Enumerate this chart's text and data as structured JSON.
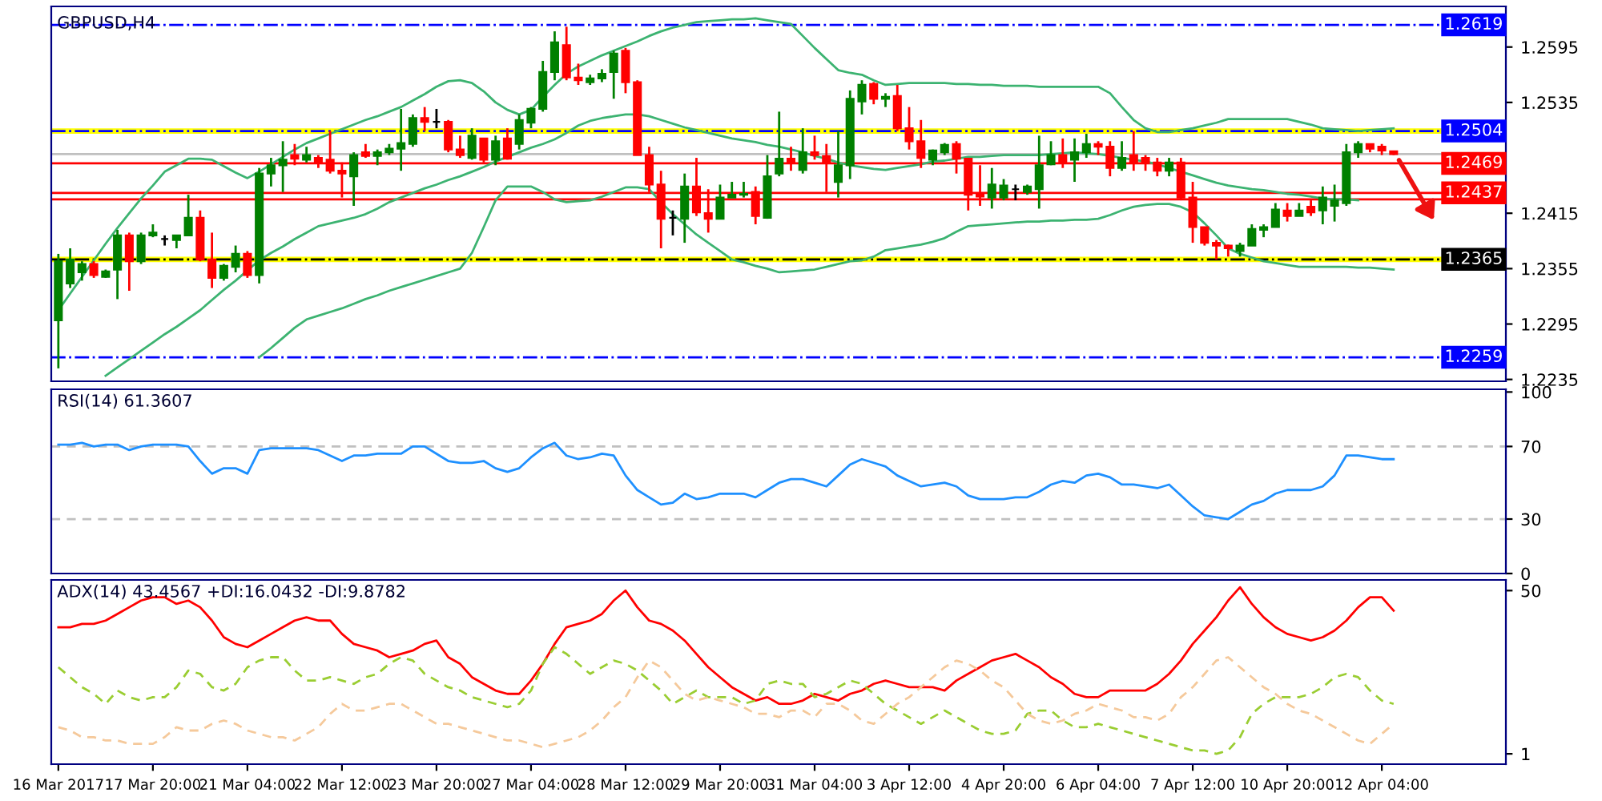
{
  "chart_data": [
    {
      "type": "candlestick",
      "title": "GBPUSD,H4",
      "tick_labels": "y",
      "categories": [
        null,
        null,
        null,
        null,
        null,
        null,
        null,
        null,
        null,
        null,
        null,
        null,
        null,
        null,
        null,
        null,
        null,
        null,
        null,
        null,
        null,
        null,
        null,
        null,
        null,
        null,
        null,
        null,
        null,
        null,
        null,
        null,
        null,
        null,
        null,
        null,
        null,
        null,
        null,
        null,
        null,
        null,
        null,
        null,
        null,
        null,
        null,
        null,
        null,
        null,
        null,
        null,
        null,
        null,
        null,
        null,
        null,
        null,
        null,
        null,
        null,
        null,
        null,
        null,
        null,
        null,
        null,
        null,
        null,
        null,
        null,
        null,
        null,
        null,
        null,
        null,
        null,
        null,
        null,
        null,
        null,
        null,
        null,
        null,
        null,
        null,
        null,
        null,
        null,
        null,
        null,
        null,
        null,
        null,
        null,
        null,
        null,
        null,
        null,
        null,
        null,
        null,
        null,
        null,
        null,
        null,
        null,
        null,
        null,
        null,
        null,
        null,
        null,
        null
      ],
      "ylim": [
        1.2233,
        1.2639
      ],
      "yticks": [
        1.2235,
        1.2295,
        1.2355,
        1.2415,
        1.2535,
        1.2595
      ],
      "ohlc": [
        [
          1.2299,
          1.2371,
          1.2247,
          1.2363
        ],
        [
          1.2339,
          1.2377,
          1.2334,
          1.2365
        ],
        [
          1.2351,
          1.2363,
          1.2342,
          1.236
        ],
        [
          1.236,
          1.2363,
          1.2345,
          1.2348
        ],
        [
          1.2346,
          1.2354,
          1.2345,
          1.2352
        ],
        [
          1.2354,
          1.2397,
          1.2322,
          1.2391
        ],
        [
          1.2391,
          1.2394,
          1.2331,
          1.2363
        ],
        [
          1.2363,
          1.2394,
          1.236,
          1.2391
        ],
        [
          1.2391,
          1.2403,
          1.2389,
          1.2394
        ],
        [
          1.2387,
          1.2391,
          1.238,
          1.2387
        ],
        [
          1.2386,
          1.2391,
          1.2377,
          1.2391
        ],
        [
          1.2391,
          1.2435,
          1.2391,
          1.241
        ],
        [
          1.241,
          1.2418,
          1.2363,
          1.2365
        ],
        [
          1.2365,
          1.2394,
          1.2334,
          1.2345
        ],
        [
          1.2345,
          1.236,
          1.2342,
          1.2358
        ],
        [
          1.2357,
          1.238,
          1.2351,
          1.2371
        ],
        [
          1.2371,
          1.2374,
          1.2345,
          1.2348
        ],
        [
          1.2348,
          1.2464,
          1.2339,
          1.2458
        ],
        [
          1.2458,
          1.2475,
          1.2444,
          1.2467
        ],
        [
          1.2467,
          1.2493,
          1.2438,
          1.2473
        ],
        [
          1.2478,
          1.249,
          1.2467,
          1.2474
        ],
        [
          1.2473,
          1.2487,
          1.247,
          1.2478
        ],
        [
          1.2475,
          1.2478,
          1.2464,
          1.247
        ],
        [
          1.2473,
          1.2504,
          1.2458,
          1.2461
        ],
        [
          1.2461,
          1.247,
          1.2432,
          1.2458
        ],
        [
          1.2455,
          1.2481,
          1.2423,
          1.2478
        ],
        [
          1.2481,
          1.249,
          1.2475,
          1.2477
        ],
        [
          1.2477,
          1.2484,
          1.2467,
          1.2481
        ],
        [
          1.2481,
          1.249,
          1.2478,
          1.2485
        ],
        [
          1.2485,
          1.2528,
          1.2461,
          1.2491
        ],
        [
          1.249,
          1.2522,
          1.2487,
          1.2518
        ],
        [
          1.2518,
          1.253,
          1.2504,
          1.2514
        ],
        [
          1.2514,
          1.2528,
          1.2507,
          1.2514
        ],
        [
          1.2514,
          1.2516,
          1.2481,
          1.2484
        ],
        [
          1.2484,
          1.2499,
          1.2475,
          1.2478
        ],
        [
          1.2475,
          1.2507,
          1.2473,
          1.2499
        ],
        [
          1.2496,
          1.2496,
          1.247,
          1.2473
        ],
        [
          1.2473,
          1.2499,
          1.2467,
          1.2493
        ],
        [
          1.2496,
          1.2507,
          1.2473,
          1.2474
        ],
        [
          1.249,
          1.2522,
          1.2484,
          1.2516
        ],
        [
          1.2513,
          1.253,
          1.2507,
          1.2528
        ],
        [
          1.2528,
          1.258,
          1.2525,
          1.2568
        ],
        [
          1.2568,
          1.2612,
          1.2559,
          1.26
        ],
        [
          1.2597,
          1.2617,
          1.2559,
          1.2562
        ],
        [
          1.2562,
          1.2577,
          1.2554,
          1.2559
        ],
        [
          1.2557,
          1.2565,
          1.2554,
          1.2561
        ],
        [
          1.2561,
          1.2571,
          1.2557,
          1.2566
        ],
        [
          1.2568,
          1.2591,
          1.2539,
          1.2588
        ],
        [
          1.2591,
          1.2594,
          1.2545,
          1.2557
        ],
        [
          1.2557,
          1.2559,
          1.2478,
          1.2478
        ],
        [
          1.2478,
          1.2487,
          1.2438,
          1.2446
        ],
        [
          1.2446,
          1.2461,
          1.2377,
          1.2409
        ],
        [
          1.241,
          1.2418,
          1.2391,
          1.241
        ],
        [
          1.2409,
          1.2458,
          1.2383,
          1.2444
        ],
        [
          1.2444,
          1.2475,
          1.2412,
          1.2416
        ],
        [
          1.2415,
          1.2441,
          1.2394,
          1.2409
        ],
        [
          1.2409,
          1.2446,
          1.2409,
          1.2432
        ],
        [
          1.2432,
          1.2449,
          1.2432,
          1.2435
        ],
        [
          1.2435,
          1.2449,
          1.2432,
          1.2436
        ],
        [
          1.2438,
          1.2444,
          1.2403,
          1.2412
        ],
        [
          1.241,
          1.2478,
          1.2409,
          1.2455
        ],
        [
          1.2458,
          1.2525,
          1.2455,
          1.2474
        ],
        [
          1.2474,
          1.2487,
          1.2461,
          1.247
        ],
        [
          1.2462,
          1.2507,
          1.2458,
          1.2481
        ],
        [
          1.2481,
          1.2499,
          1.2473,
          1.2478
        ],
        [
          1.2477,
          1.249,
          1.2438,
          1.247
        ],
        [
          1.2449,
          1.2504,
          1.2432,
          1.2467
        ],
        [
          1.2467,
          1.2548,
          1.2452,
          1.2539
        ],
        [
          1.2536,
          1.2559,
          1.2522,
          1.2554
        ],
        [
          1.2555,
          1.2557,
          1.2533,
          1.2539
        ],
        [
          1.2539,
          1.2545,
          1.253,
          1.2541
        ],
        [
          1.2542,
          1.2554,
          1.2504,
          1.2507
        ],
        [
          1.2507,
          1.253,
          1.2484,
          1.2493
        ],
        [
          1.2493,
          1.2516,
          1.2464,
          1.2475
        ],
        [
          1.2473,
          1.2484,
          1.2467,
          1.2483
        ],
        [
          1.2481,
          1.2491,
          1.2478,
          1.2489
        ],
        [
          1.249,
          1.2493,
          1.2458,
          1.2474
        ],
        [
          1.2474,
          1.2475,
          1.2418,
          1.2435
        ],
        [
          1.2435,
          1.2467,
          1.2423,
          1.2433
        ],
        [
          1.2432,
          1.2464,
          1.242,
          1.2446
        ],
        [
          1.2432,
          1.2452,
          1.2429,
          1.2445
        ],
        [
          1.2441,
          1.2446,
          1.2429,
          1.2441
        ],
        [
          1.2438,
          1.2446,
          1.2435,
          1.2444
        ],
        [
          1.2441,
          1.2499,
          1.242,
          1.2467
        ],
        [
          1.2468,
          1.2493,
          1.2467,
          1.2478
        ],
        [
          1.2478,
          1.2496,
          1.2464,
          1.247
        ],
        [
          1.2473,
          1.2496,
          1.2449,
          1.2481
        ],
        [
          1.2481,
          1.2501,
          1.2475,
          1.249
        ],
        [
          1.249,
          1.2493,
          1.2478,
          1.2487
        ],
        [
          1.2487,
          1.2493,
          1.2455,
          1.2464
        ],
        [
          1.2464,
          1.2493,
          1.2461,
          1.2475
        ],
        [
          1.2478,
          1.2504,
          1.2461,
          1.247
        ],
        [
          1.2475,
          1.2478,
          1.2461,
          1.247
        ],
        [
          1.247,
          1.2475,
          1.2455,
          1.2461
        ],
        [
          1.2461,
          1.2475,
          1.2455,
          1.247
        ],
        [
          1.247,
          1.2475,
          1.2429,
          1.2432
        ],
        [
          1.2432,
          1.2449,
          1.2383,
          1.24
        ],
        [
          1.24,
          1.24,
          1.238,
          1.2383
        ],
        [
          1.2383,
          1.2386,
          1.2365,
          1.238
        ],
        [
          1.238,
          1.2381,
          1.2368,
          1.2377
        ],
        [
          1.2374,
          1.2383,
          1.2368,
          1.238
        ],
        [
          1.238,
          1.2403,
          1.238,
          1.2398
        ],
        [
          1.2397,
          1.2403,
          1.2389,
          1.24
        ],
        [
          1.24,
          1.2426,
          1.24,
          1.2419
        ],
        [
          1.2418,
          1.2426,
          1.2406,
          1.2412
        ],
        [
          1.2412,
          1.2426,
          1.2412,
          1.2418
        ],
        [
          1.2422,
          1.2429,
          1.2412,
          1.2416
        ],
        [
          1.2418,
          1.2444,
          1.2403,
          1.2432
        ],
        [
          1.2423,
          1.2446,
          1.2406,
          1.2429
        ],
        [
          1.2426,
          1.249,
          1.2423,
          1.2481
        ],
        [
          1.2481,
          1.2493,
          1.2475,
          1.249
        ],
        [
          1.249,
          1.249,
          1.2481,
          1.2485
        ],
        [
          1.2487,
          1.249,
          1.2478,
          1.2483
        ],
        [
          1.2482,
          1.2482,
          1.2478,
          1.2479
        ]
      ],
      "colors": [
        "#008000",
        "#008000",
        "#008000",
        "#ff0000",
        "#008000",
        "#008000",
        "#ff0000",
        "#008000",
        "#008000",
        "#000000",
        "#008000",
        "#008000",
        "#ff0000",
        "#ff0000",
        "#008000",
        "#008000",
        "#ff0000",
        "#008000",
        "#008000",
        "#008000",
        "#ff0000",
        "#008000",
        "#ff0000",
        "#ff0000",
        "#ff0000",
        "#008000",
        "#ff0000",
        "#008000",
        "#008000",
        "#008000",
        "#008000",
        "#ff0000",
        "#000000",
        "#ff0000",
        "#ff0000",
        "#008000",
        "#ff0000",
        "#008000",
        "#ff0000",
        "#008000",
        "#008000",
        "#008000",
        "#008000",
        "#ff0000",
        "#ff0000",
        "#008000",
        "#008000",
        "#008000",
        "#ff0000",
        "#ff0000",
        "#ff0000",
        "#ff0000",
        "#000000",
        "#008000",
        "#ff0000",
        "#ff0000",
        "#008000",
        "#008000",
        "#008000",
        "#ff0000",
        "#008000",
        "#008000",
        "#ff0000",
        "#008000",
        "#ff0000",
        "#ff0000",
        "#008000",
        "#008000",
        "#008000",
        "#ff0000",
        "#008000",
        "#ff0000",
        "#ff0000",
        "#ff0000",
        "#008000",
        "#008000",
        "#ff0000",
        "#ff0000",
        "#ff0000",
        "#008000",
        "#008000",
        "#000000",
        "#008000",
        "#008000",
        "#008000",
        "#ff0000",
        "#008000",
        "#008000",
        "#ff0000",
        "#ff0000",
        "#008000",
        "#ff0000",
        "#ff0000",
        "#ff0000",
        "#008000",
        "#ff0000",
        "#ff0000",
        "#ff0000",
        "#ff0000",
        "#ff0000",
        "#008000",
        "#008000",
        "#008000",
        "#008000",
        "#ff0000",
        "#008000",
        "#ff0000",
        "#008000",
        "#008000",
        "#008000",
        "#008000",
        "#ff0000",
        "#ff0000",
        "#ff0000"
      ],
      "series": [
        {
          "type": "line",
          "color": "#3cb371",
          "values": [
            1.231,
            1.2328,
            1.2346,
            1.2364,
            1.2382,
            1.2399,
            1.2415,
            1.2431,
            1.2445,
            1.246,
            1.2467,
            1.2474,
            1.2474,
            1.2473,
            1.2466,
            1.2459,
            1.2453,
            1.246,
            1.2468,
            1.2476,
            1.2484,
            1.2491,
            1.2496,
            1.2501,
            1.2506,
            1.2511,
            1.2516,
            1.252,
            1.2525,
            1.253,
            1.2537,
            1.2544,
            1.2552,
            1.2558,
            1.2559,
            1.2556,
            1.2547,
            1.2535,
            1.2527,
            1.2522,
            1.2527,
            1.2541,
            1.2554,
            1.2566,
            1.2574,
            1.258,
            1.2586,
            1.2591,
            1.2596,
            1.2601,
            1.2607,
            1.2612,
            1.2616,
            1.2619,
            1.2622,
            1.2623,
            1.2624,
            1.2625,
            1.2625,
            1.2626,
            1.2624,
            1.2622,
            1.262,
            1.2607,
            1.2594,
            1.2582,
            1.257,
            1.2567,
            1.2565,
            1.2559,
            1.2554,
            1.2555,
            1.2556,
            1.2556,
            1.2556,
            1.2556,
            1.2555,
            1.2555,
            1.2554,
            1.2554,
            1.2553,
            1.2553,
            1.2553,
            1.2552,
            1.2552,
            1.2552,
            1.2552,
            1.2552,
            1.2552,
            1.2545,
            1.253,
            1.2516,
            1.2507,
            1.2503,
            1.2503,
            1.2505,
            1.2507,
            1.251,
            1.2513,
            1.2517,
            1.2517,
            1.2517,
            1.2517,
            1.2517,
            1.2517,
            1.2514,
            1.2511,
            1.2507,
            1.2506,
            1.2505,
            1.2504,
            1.2505,
            1.2506,
            1.2507
          ]
        },
        {
          "type": "line",
          "color": "#3cb371",
          "values": [
            null,
            null,
            null,
            null,
            1.2239,
            1.2248,
            1.2257,
            1.2266,
            1.2275,
            1.2284,
            1.2292,
            1.2301,
            1.231,
            1.2321,
            1.2332,
            1.2342,
            1.2353,
            1.2364,
            1.2372,
            1.2379,
            1.2387,
            1.2394,
            1.2401,
            1.2404,
            1.2407,
            1.241,
            1.2414,
            1.242,
            1.2427,
            1.2432,
            1.2437,
            1.2442,
            1.2446,
            1.2451,
            1.2455,
            1.246,
            1.2465,
            1.2471,
            1.2476,
            1.2481,
            1.2486,
            1.249,
            1.2495,
            1.2502,
            1.251,
            1.2515,
            1.2518,
            1.252,
            1.2522,
            1.2522,
            1.252,
            1.2516,
            1.2512,
            1.2508,
            1.2505,
            1.2502,
            1.2499,
            1.2496,
            1.2494,
            1.2492,
            1.2489,
            1.2487,
            1.2484,
            1.2481,
            1.2477,
            1.2474,
            1.247,
            1.2467,
            1.2465,
            1.2463,
            1.2462,
            1.2464,
            1.2466,
            1.2468,
            1.2471,
            1.2472,
            1.2474,
            1.2476,
            1.2476,
            1.2477,
            1.2478,
            1.2478,
            1.2478,
            1.2478,
            1.2479,
            1.248,
            1.2481,
            1.248,
            1.2479,
            1.2477,
            1.2475,
            1.2473,
            1.2471,
            1.2468,
            1.2464,
            1.246,
            1.2456,
            1.2452,
            1.2448,
            1.2445,
            1.2443,
            1.2441,
            1.244,
            1.2438,
            1.2436,
            1.2435,
            1.2433,
            1.2431,
            1.243,
            1.243,
            1.2429,
            null,
            null,
            null
          ]
        },
        {
          "type": "line",
          "color": "#3cb371",
          "values": [
            null,
            null,
            null,
            null,
            null,
            null,
            null,
            null,
            null,
            null,
            null,
            null,
            null,
            null,
            null,
            null,
            null,
            1.2259,
            1.2269,
            1.228,
            1.2291,
            1.23,
            1.2304,
            1.2308,
            1.2312,
            1.2317,
            1.2322,
            1.2326,
            1.2331,
            1.2335,
            1.2339,
            1.2343,
            1.2347,
            1.2351,
            1.2355,
            1.2372,
            1.24,
            1.2429,
            1.2444,
            1.2444,
            1.2444,
            1.2438,
            1.243,
            1.2427,
            1.2428,
            1.2429,
            1.2433,
            1.2438,
            1.2443,
            1.2443,
            1.2441,
            1.2427,
            1.2414,
            1.2403,
            1.2392,
            1.2383,
            1.2374,
            1.2365,
            1.2362,
            1.2358,
            1.2355,
            1.2351,
            1.2352,
            1.2353,
            1.2354,
            1.2357,
            1.236,
            1.2363,
            1.2364,
            1.2368,
            1.2375,
            1.2377,
            1.2379,
            1.2381,
            1.2384,
            1.2388,
            1.2395,
            1.2401,
            1.2402,
            1.2403,
            1.2404,
            1.2405,
            1.2406,
            1.2406,
            1.2407,
            1.2407,
            1.2408,
            1.2408,
            1.2409,
            1.2413,
            1.2418,
            1.2422,
            1.2424,
            1.2425,
            1.2425,
            1.2422,
            1.2416,
            1.2404,
            1.2391,
            1.2377,
            1.2371,
            1.2367,
            1.2363,
            1.2361,
            1.2359,
            1.2357,
            1.2357,
            1.2357,
            1.2357,
            1.2357,
            1.2356,
            1.2356,
            1.2355,
            1.2354
          ]
        }
      ],
      "bands": [
        {
          "axis": "y",
          "from": 1.2501,
          "to": 1.2507,
          "color": "#ffff00"
        },
        {
          "axis": "y",
          "from": 1.2362,
          "to": 1.2368,
          "color": "#ffff00"
        }
      ],
      "ref_lines": [
        {
          "axis": "y",
          "value": 1.2619,
          "label": "1.2619",
          "color": "#0000ff",
          "line_style": "dashdot"
        },
        {
          "axis": "y",
          "value": 1.2504,
          "label": "1.2504",
          "color": "#0000ff",
          "line_style": "dashdot"
        },
        {
          "axis": "y",
          "value": 1.2479,
          "color": "#c0c0c0",
          "line_style": "solid"
        },
        {
          "axis": "y",
          "value": 1.2469,
          "label": "1.2469",
          "color": "#ff0000",
          "line_style": "solid"
        },
        {
          "axis": "y",
          "value": 1.2437,
          "label": "1.2437",
          "color": "#ff0000",
          "line_style": "solid"
        },
        {
          "axis": "y",
          "value": 1.243,
          "color": "#ff0000",
          "line_style": "solid"
        },
        {
          "axis": "y",
          "value": 1.2365,
          "label": "1.2365",
          "color": "#000000",
          "line_style": "dashdot"
        },
        {
          "axis": "y",
          "value": 1.2259,
          "label": "1.2259",
          "color": "#0000ff",
          "line_style": "dashdot"
        }
      ]
    },
    {
      "type": "line",
      "title": "RSI(14) 61.3607",
      "tick_labels": "y",
      "categories": [
        null,
        null,
        null,
        null,
        null,
        null,
        null,
        null,
        null,
        null,
        null,
        null,
        null,
        null,
        null,
        null,
        null,
        null,
        null,
        null,
        null,
        null,
        null,
        null,
        null,
        null,
        null,
        null,
        null,
        null,
        null,
        null,
        null,
        null,
        null,
        null,
        null,
        null,
        null,
        null,
        null,
        null,
        null,
        null,
        null,
        null,
        null,
        null,
        null,
        null,
        null,
        null,
        null,
        null,
        null,
        null,
        null,
        null,
        null,
        null,
        null,
        null,
        null,
        null,
        null,
        null,
        null,
        null,
        null,
        null,
        null,
        null,
        null,
        null,
        null,
        null,
        null,
        null,
        null,
        null,
        null,
        null,
        null,
        null,
        null,
        null,
        null,
        null,
        null,
        null,
        null,
        null,
        null,
        null,
        null,
        null,
        null,
        null,
        null,
        null,
        null,
        null,
        null,
        null,
        null,
        null,
        null,
        null,
        null,
        null,
        null,
        null,
        null,
        null
      ],
      "ylim": [
        0,
        101.5
      ],
      "yticks": [
        0,
        30,
        70,
        100
      ],
      "series": [
        {
          "color": "#1e90ff",
          "values": [
            71,
            71,
            72,
            70,
            71,
            71,
            68,
            70,
            71,
            71,
            71,
            70,
            62,
            55,
            58,
            58,
            55,
            68,
            69,
            69,
            69,
            69,
            68,
            65,
            62,
            65,
            65,
            66,
            66,
            66,
            70,
            70,
            66,
            62,
            61,
            61,
            62,
            58,
            56,
            58,
            64,
            69,
            72,
            65,
            63,
            64,
            66,
            65,
            54,
            46,
            42,
            38,
            39,
            44,
            41,
            42,
            44,
            44,
            44,
            42,
            46,
            50,
            52,
            52,
            50,
            48,
            54,
            60,
            63,
            61,
            59,
            54,
            51,
            48,
            49,
            50,
            48,
            43,
            41,
            41,
            41,
            42,
            42,
            45,
            49,
            51,
            50,
            54,
            55,
            53,
            49,
            49,
            48,
            47,
            49,
            43,
            37,
            32,
            31,
            30,
            34,
            38,
            40,
            44,
            46,
            46,
            46,
            48,
            54,
            65,
            65,
            64,
            63,
            63
          ]
        }
      ],
      "ref_lines": [
        {
          "axis": "y",
          "value": 30,
          "color": "#c0c0c0",
          "line_style": "dashed"
        },
        {
          "axis": "y",
          "value": 70,
          "color": "#c0c0c0",
          "line_style": "dashed"
        }
      ]
    },
    {
      "type": "line",
      "title": "ADX(14) 43.4567 +DI:16.0432 -DI:9.8782",
      "categories": [
        "16 Mar 2017",
        null,
        null,
        null,
        null,
        null,
        null,
        null,
        "17 Mar 20:00",
        null,
        null,
        null,
        null,
        null,
        null,
        null,
        "21 Mar 04:00",
        null,
        null,
        null,
        null,
        null,
        null,
        null,
        "22 Mar 12:00",
        null,
        null,
        null,
        null,
        null,
        null,
        null,
        "23 Mar 20:00",
        null,
        null,
        null,
        null,
        null,
        null,
        null,
        "27 Mar 04:00",
        null,
        null,
        null,
        null,
        null,
        null,
        null,
        "28 Mar 12:00",
        null,
        null,
        null,
        null,
        null,
        null,
        null,
        "29 Mar 20:00",
        null,
        null,
        null,
        null,
        null,
        null,
        null,
        "31 Mar 04:00",
        null,
        null,
        null,
        null,
        null,
        null,
        null,
        "3 Apr 12:00",
        null,
        null,
        null,
        null,
        null,
        null,
        null,
        "4 Apr 20:00",
        null,
        null,
        null,
        null,
        null,
        null,
        null,
        "6 Apr 04:00",
        null,
        null,
        null,
        null,
        null,
        null,
        null,
        "7 Apr 12:00",
        null,
        null,
        null,
        null,
        null,
        null,
        null,
        "10 Apr 20:00",
        null,
        null,
        null,
        null,
        null,
        null,
        null,
        "12 Apr 04:00",
        null
      ],
      "ylim": [
        -2.1,
        53.2
      ],
      "yticks": [
        1,
        50
      ],
      "series": [
        {
          "color": "#ff0000",
          "line_style": "solid",
          "values": [
            39,
            39,
            40,
            40,
            41,
            43,
            45,
            47,
            48,
            48,
            46,
            47,
            45,
            41,
            36,
            34,
            33,
            35,
            37,
            39,
            41,
            42,
            41,
            41,
            37,
            34,
            33,
            32,
            30,
            31,
            32,
            34,
            35,
            30,
            28,
            24,
            22,
            20,
            19,
            19,
            23,
            28,
            34,
            39,
            40,
            41,
            43,
            47,
            50,
            45,
            41,
            40,
            38,
            35,
            31,
            27,
            24,
            21,
            19,
            17,
            18,
            16,
            16,
            17,
            19,
            18,
            17,
            19,
            20,
            22,
            23,
            22,
            21,
            21,
            21,
            20,
            23,
            25,
            27,
            29,
            30,
            31,
            29,
            27,
            24,
            22,
            19,
            18,
            18,
            20,
            20,
            20,
            20,
            22,
            25,
            29,
            34,
            38,
            42,
            47,
            51,
            46,
            42,
            39,
            37,
            36,
            35,
            36,
            38,
            41,
            45,
            48,
            48,
            44
          ]
        },
        {
          "color": "#9acd32",
          "line_style": "dashed",
          "values": [
            27,
            24,
            21,
            19,
            16,
            20,
            18,
            17,
            18,
            18,
            21,
            26,
            25,
            21,
            20,
            22,
            27,
            29,
            30,
            30,
            26,
            23,
            23,
            24,
            23,
            22,
            24,
            25,
            28,
            30,
            29,
            25,
            23,
            21,
            20,
            18,
            17,
            16,
            15,
            16,
            20,
            28,
            33,
            31,
            28,
            25,
            27,
            29,
            28,
            26,
            23,
            20,
            16,
            18,
            20,
            18,
            18,
            18,
            16,
            17,
            22,
            23,
            22,
            22,
            18,
            19,
            21,
            23,
            22,
            19,
            16,
            14,
            12,
            10,
            12,
            14,
            12,
            10,
            8,
            7,
            7,
            8,
            13,
            14,
            14,
            11,
            9,
            9,
            10,
            9,
            8,
            7,
            6,
            5,
            4,
            3,
            2,
            2,
            1,
            2,
            6,
            13,
            16,
            18,
            18,
            18,
            19,
            21,
            24,
            25,
            24,
            20,
            17,
            16
          ]
        },
        {
          "color": "#f5c99b",
          "line_style": "dashed",
          "values": [
            9,
            8,
            6,
            6,
            5,
            5,
            4,
            4,
            4,
            6,
            9,
            8,
            8,
            10,
            11,
            10,
            8,
            7,
            6,
            6,
            5,
            7,
            9,
            13,
            16,
            14,
            14,
            15,
            16,
            16,
            14,
            12,
            10,
            10,
            9,
            8,
            7,
            6,
            5,
            5,
            4,
            3,
            4,
            5,
            6,
            8,
            11,
            15,
            18,
            24,
            29,
            27,
            23,
            19,
            17,
            18,
            17,
            16,
            15,
            13,
            13,
            12,
            14,
            14,
            12,
            16,
            16,
            14,
            11,
            10,
            13,
            16,
            18,
            21,
            24,
            27,
            29,
            28,
            26,
            23,
            21,
            17,
            13,
            11,
            10,
            11,
            13,
            14,
            16,
            15,
            14,
            12,
            12,
            11,
            13,
            18,
            21,
            25,
            29,
            30,
            27,
            24,
            21,
            19,
            16,
            14,
            13,
            11,
            9,
            7,
            5,
            4,
            7,
            10
          ]
        }
      ]
    }
  ]
}
